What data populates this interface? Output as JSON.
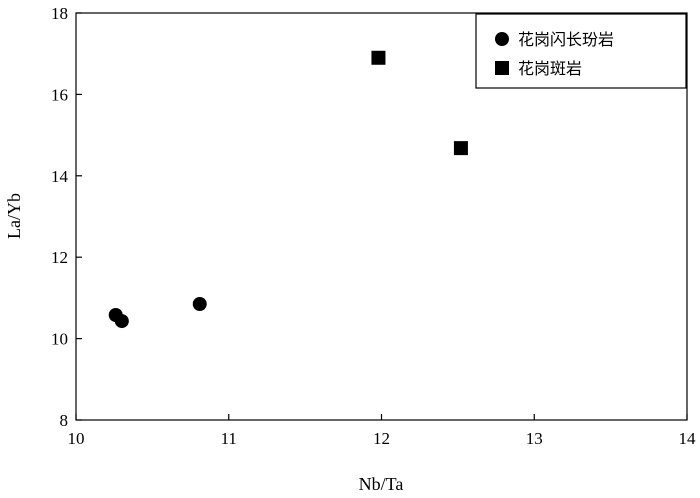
{
  "chart_data": {
    "type": "scatter",
    "title": "",
    "xlabel": "Nb/Ta",
    "ylabel": "La/Yb",
    "xlim": [
      10,
      14
    ],
    "ylim": [
      8,
      18
    ],
    "xticks": [
      10,
      11,
      12,
      13,
      14
    ],
    "yticks": [
      8,
      10,
      12,
      14,
      16,
      18
    ],
    "grid": false,
    "legend_position": "top-right",
    "series": [
      {
        "name": "花岗闪长玢岩",
        "marker": "circle",
        "color": "#000000",
        "points": [
          {
            "x": 10.26,
            "y": 10.58
          },
          {
            "x": 10.3,
            "y": 10.43
          },
          {
            "x": 10.81,
            "y": 10.85
          }
        ]
      },
      {
        "name": "花岗斑岩",
        "marker": "square",
        "color": "#000000",
        "points": [
          {
            "x": 11.98,
            "y": 16.9
          },
          {
            "x": 12.52,
            "y": 14.68
          }
        ]
      }
    ]
  }
}
